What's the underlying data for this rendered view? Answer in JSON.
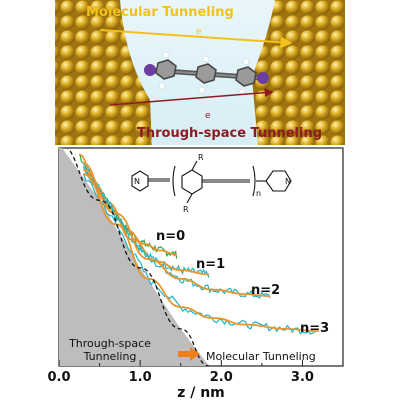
{
  "top_panel": {
    "molecular_label": "Molecular Tunneling",
    "through_space_label": "Through-space Tunneling",
    "electron_symbol": "e",
    "colors": {
      "molecular": "#f2c21b",
      "through_space": "#8e1a22"
    }
  },
  "chart_data": {
    "type": "line",
    "xlabel": "z / nm",
    "xlim": [
      0.0,
      3.5
    ],
    "x_ticks": [
      "0.0",
      "1.0",
      "2.0",
      "3.0"
    ],
    "y_ticks_shown": false,
    "series": [
      {
        "name": "n=0",
        "x": [
          0.25,
          0.45,
          0.65,
          0.85,
          1.05,
          1.25,
          1.45
        ],
        "y": [
          0.97,
          0.83,
          0.72,
          0.62,
          0.56,
          0.53,
          0.51
        ]
      },
      {
        "name": "n=1",
        "x": [
          0.3,
          0.6,
          0.9,
          1.2,
          1.5,
          1.85
        ],
        "y": [
          0.93,
          0.75,
          0.58,
          0.48,
          0.44,
          0.42
        ]
      },
      {
        "name": "n=2",
        "x": [
          0.3,
          0.7,
          1.1,
          1.5,
          1.9,
          2.3,
          2.6
        ],
        "y": [
          0.9,
          0.7,
          0.49,
          0.4,
          0.35,
          0.33,
          0.32
        ]
      },
      {
        "name": "n=3",
        "x": [
          0.3,
          0.7,
          1.1,
          1.5,
          1.9,
          2.3,
          2.8,
          3.2
        ],
        "y": [
          0.88,
          0.65,
          0.4,
          0.27,
          0.22,
          0.19,
          0.17,
          0.16
        ]
      }
    ],
    "through_space_fit": {
      "x": [
        0.0,
        0.5,
        1.0,
        1.5,
        1.85
      ],
      "y": [
        1.02,
        0.76,
        0.45,
        0.17,
        0.0
      ]
    },
    "labels": {
      "n0": "n=0",
      "n1": "n=1",
      "n2": "n=2",
      "n3": "n=3",
      "through_space_line1": "Through-space",
      "through_space_line2": "Tunneling",
      "molecular": "Molecular Tunneling"
    },
    "molecule": {
      "substituent_top": "R",
      "substituent_bottom": "R",
      "repeat_index": "n"
    },
    "colors": {
      "raw": "#21b3c4",
      "fit": "#e8952e",
      "raw_n0": "#2fa84a",
      "shade": "#bdbdbd",
      "arrow": "#ef7f1a"
    }
  }
}
